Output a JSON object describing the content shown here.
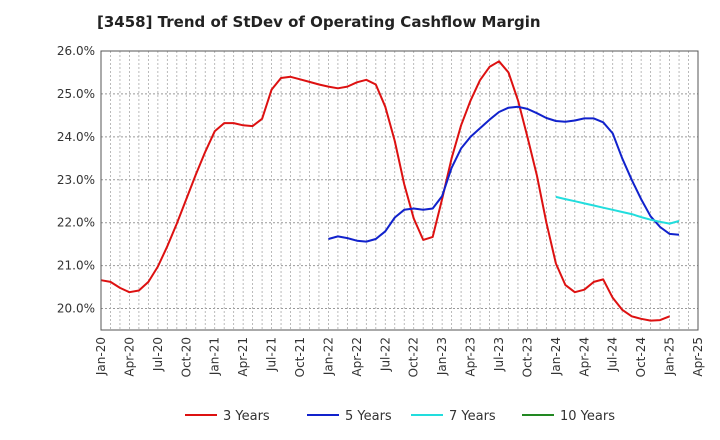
{
  "chart_data": {
    "type": "line",
    "title": "[3458]  Trend of StDev of Operating Cashflow Margin",
    "xlabel": "",
    "ylabel": "",
    "ylim": [
      19.5,
      26.0
    ],
    "y_ticks": [
      "20.0%",
      "21.0%",
      "22.0%",
      "23.0%",
      "24.0%",
      "25.0%",
      "26.0%"
    ],
    "y_tick_values": [
      20,
      21,
      22,
      23,
      24,
      25,
      26
    ],
    "x_ticks": [
      "Jan-20",
      "Apr-20",
      "Jul-20",
      "Oct-20",
      "Jan-21",
      "Apr-21",
      "Jul-21",
      "Oct-21",
      "Jan-22",
      "Apr-22",
      "Jul-22",
      "Oct-22",
      "Jan-23",
      "Apr-23",
      "Jul-23",
      "Oct-23",
      "Jan-24",
      "Apr-24",
      "Jul-24",
      "Oct-24",
      "Jan-25",
      "Apr-25"
    ],
    "x_range_months": [
      0,
      63
    ],
    "grid": true,
    "legend_position": "bottom",
    "series": [
      {
        "name": "3 Years",
        "color": "#dd1111",
        "start_month": 0,
        "values": [
          20.66,
          20.62,
          20.48,
          20.38,
          20.42,
          20.62,
          20.98,
          21.45,
          21.98,
          22.55,
          23.12,
          23.65,
          24.13,
          24.32,
          24.32,
          24.27,
          24.25,
          24.42,
          25.1,
          25.37,
          25.4,
          25.34,
          25.28,
          25.22,
          25.17,
          25.13,
          25.17,
          25.27,
          25.33,
          25.22,
          24.7,
          23.9,
          22.9,
          22.1,
          21.6,
          21.67,
          22.55,
          23.5,
          24.27,
          24.85,
          25.32,
          25.63,
          25.76,
          25.5,
          24.85,
          24.0,
          23.1,
          22.0,
          21.05,
          20.55,
          20.38,
          20.44,
          20.62,
          20.68,
          20.25,
          19.97,
          19.82,
          19.76,
          19.72,
          19.73,
          19.82
        ]
      },
      {
        "name": "5 Years",
        "color": "#1122cc",
        "start_month": 24,
        "values": [
          21.62,
          21.68,
          21.64,
          21.58,
          21.56,
          21.62,
          21.8,
          22.12,
          22.3,
          22.33,
          22.3,
          22.33,
          22.62,
          23.28,
          23.73,
          24.0,
          24.2,
          24.4,
          24.58,
          24.68,
          24.7,
          24.65,
          24.55,
          24.44,
          24.37,
          24.35,
          24.38,
          24.43,
          24.43,
          24.34,
          24.08,
          23.5,
          23.0,
          22.55,
          22.15,
          21.9,
          21.74,
          21.72
        ]
      },
      {
        "name": "7 Years",
        "color": "#22dddd",
        "start_month": 48,
        "values": [
          22.6,
          22.55,
          22.5,
          22.45,
          22.4,
          22.35,
          22.3,
          22.25,
          22.2,
          22.13,
          22.07,
          22.02,
          21.98,
          22.04
        ]
      },
      {
        "name": "10 Years",
        "color": "#228822",
        "start_month": 0,
        "values": []
      }
    ]
  }
}
